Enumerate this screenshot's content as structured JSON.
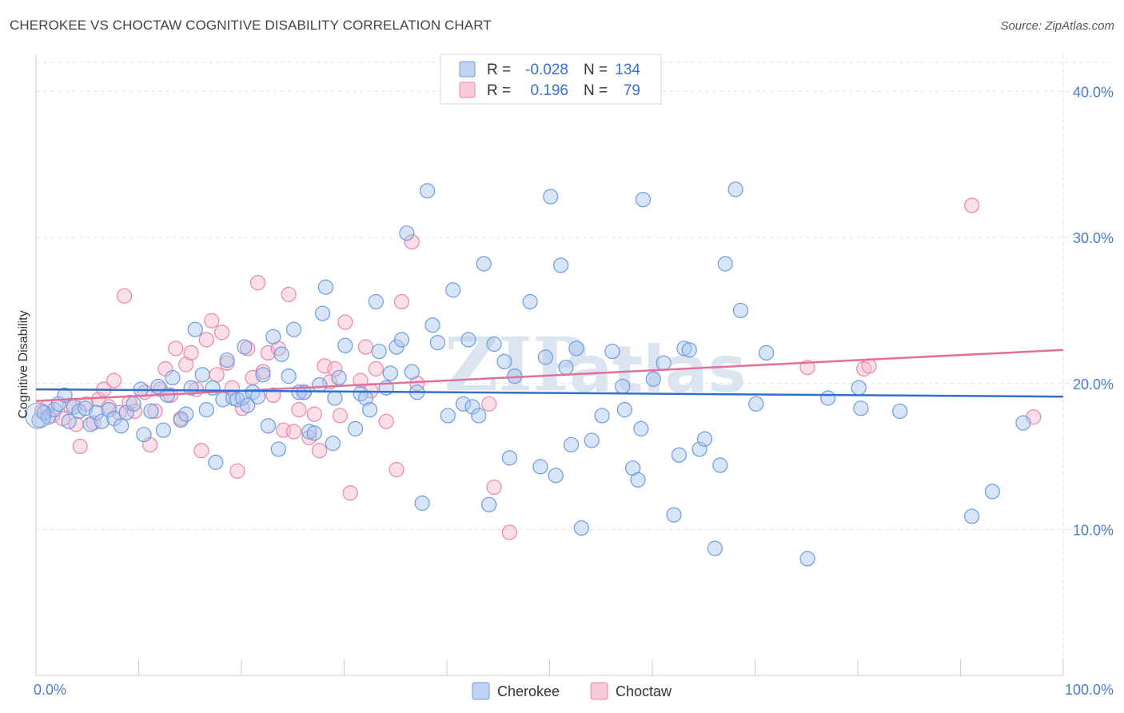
{
  "header": {
    "title": "CHEROKEE VS CHOCTAW COGNITIVE DISABILITY CORRELATION CHART",
    "source": "Source: ZipAtlas.com"
  },
  "watermark": {
    "zip": "ZIP",
    "atlas": "atlas"
  },
  "legend": {
    "rows": [
      {
        "r_label": "R =",
        "r_value": "-0.028",
        "n_label": "N =",
        "n_value": "134"
      },
      {
        "r_label": "R =",
        "r_value": "0.196",
        "n_label": "N =",
        "n_value": "79"
      }
    ]
  },
  "colors": {
    "cherokee_fill": "#a9c6ee",
    "cherokee_stroke": "#6d9be0",
    "cherokee_line": "#2f6fcf",
    "choctaw_fill": "#f6b8cb",
    "choctaw_stroke": "#e887a7",
    "choctaw_line": "#e0709a",
    "grid": "#e2e2e2",
    "tick_label": "#4a7cc7"
  },
  "chart_data": {
    "type": "scatter",
    "title": "CHEROKEE VS CHOCTAW COGNITIVE DISABILITY CORRELATION CHART",
    "xlabel": "",
    "ylabel": "Cognitive Disability",
    "xlim": [
      0,
      100
    ],
    "ylim": [
      0,
      42
    ],
    "x_tick_labels": [
      "0.0%",
      "100.0%"
    ],
    "y_ticks": [
      10,
      20,
      30,
      40
    ],
    "y_tick_labels": [
      "10.0%",
      "20.0%",
      "30.0%",
      "40.0%"
    ],
    "grid": true,
    "legend_position": "top-center",
    "series": [
      {
        "name": "Cherokee",
        "R": -0.028,
        "N": 134,
        "trend": {
          "x": [
            0,
            100
          ],
          "y": [
            19.6,
            19.1
          ]
        },
        "points": [
          [
            0.3,
            17.5
          ],
          [
            0.8,
            18.0
          ],
          [
            1.2,
            17.7
          ],
          [
            1.8,
            18.2
          ],
          [
            2.2,
            18.6
          ],
          [
            2.8,
            19.2
          ],
          [
            3.2,
            17.4
          ],
          [
            3.7,
            18.4
          ],
          [
            4.2,
            18.1
          ],
          [
            4.8,
            18.3
          ],
          [
            5.3,
            17.2
          ],
          [
            5.9,
            18.0
          ],
          [
            6.4,
            17.4
          ],
          [
            7.1,
            18.2
          ],
          [
            7.6,
            17.6
          ],
          [
            8.3,
            17.1
          ],
          [
            8.8,
            18.0
          ],
          [
            9.5,
            18.6
          ],
          [
            10.2,
            19.6
          ],
          [
            10.5,
            16.5
          ],
          [
            11.2,
            18.1
          ],
          [
            11.9,
            19.8
          ],
          [
            12.4,
            16.8
          ],
          [
            12.8,
            19.2
          ],
          [
            13.3,
            20.4
          ],
          [
            14.1,
            17.5
          ],
          [
            14.6,
            17.9
          ],
          [
            15.1,
            19.7
          ],
          [
            15.5,
            23.7
          ],
          [
            16.2,
            20.6
          ],
          [
            16.6,
            18.2
          ],
          [
            17.2,
            19.7
          ],
          [
            17.5,
            14.6
          ],
          [
            18.2,
            18.9
          ],
          [
            18.6,
            21.6
          ],
          [
            19.2,
            19.0
          ],
          [
            19.6,
            18.9
          ],
          [
            20.1,
            19.0
          ],
          [
            20.6,
            18.5
          ],
          [
            20.3,
            22.5
          ],
          [
            21.1,
            19.4
          ],
          [
            21.6,
            19.1
          ],
          [
            22.1,
            20.6
          ],
          [
            22.6,
            17.1
          ],
          [
            23.1,
            23.2
          ],
          [
            23.6,
            15.5
          ],
          [
            23.9,
            22.0
          ],
          [
            24.6,
            20.5
          ],
          [
            25.1,
            23.7
          ],
          [
            25.6,
            19.4
          ],
          [
            26.1,
            19.4
          ],
          [
            26.6,
            16.7
          ],
          [
            27.1,
            16.6
          ],
          [
            27.6,
            19.9
          ],
          [
            27.9,
            24.8
          ],
          [
            28.2,
            26.6
          ],
          [
            28.9,
            15.9
          ],
          [
            29.1,
            19.0
          ],
          [
            29.5,
            20.4
          ],
          [
            30.1,
            22.6
          ],
          [
            31.1,
            16.9
          ],
          [
            31.6,
            19.3
          ],
          [
            32.1,
            19.0
          ],
          [
            32.5,
            18.2
          ],
          [
            33.1,
            25.6
          ],
          [
            33.4,
            22.2
          ],
          [
            34.1,
            19.7
          ],
          [
            34.5,
            20.7
          ],
          [
            35.1,
            22.5
          ],
          [
            35.6,
            23.0
          ],
          [
            36.1,
            30.3
          ],
          [
            36.6,
            20.8
          ],
          [
            37.1,
            19.4
          ],
          [
            37.6,
            11.8
          ],
          [
            38.1,
            33.2
          ],
          [
            38.6,
            24.0
          ],
          [
            39.1,
            22.8
          ],
          [
            40.1,
            17.8
          ],
          [
            40.6,
            26.4
          ],
          [
            41.6,
            18.6
          ],
          [
            42.1,
            23.0
          ],
          [
            42.5,
            18.4
          ],
          [
            43.1,
            17.8
          ],
          [
            43.6,
            28.2
          ],
          [
            44.1,
            11.7
          ],
          [
            44.6,
            22.7
          ],
          [
            45.6,
            21.5
          ],
          [
            46.1,
            14.9
          ],
          [
            46.6,
            20.5
          ],
          [
            48.1,
            25.6
          ],
          [
            49.1,
            14.3
          ],
          [
            49.6,
            21.8
          ],
          [
            50.1,
            32.8
          ],
          [
            50.6,
            13.7
          ],
          [
            51.1,
            28.1
          ],
          [
            51.6,
            21.1
          ],
          [
            52.1,
            15.8
          ],
          [
            52.6,
            22.4
          ],
          [
            53.1,
            10.1
          ],
          [
            54.1,
            16.1
          ],
          [
            55.1,
            17.8
          ],
          [
            56.1,
            22.2
          ],
          [
            57.1,
            19.8
          ],
          [
            57.3,
            18.2
          ],
          [
            58.1,
            14.2
          ],
          [
            58.6,
            13.4
          ],
          [
            58.9,
            16.9
          ],
          [
            59.1,
            32.6
          ],
          [
            60.1,
            20.3
          ],
          [
            61.1,
            21.4
          ],
          [
            62.1,
            11.0
          ],
          [
            62.6,
            15.1
          ],
          [
            63.1,
            22.4
          ],
          [
            63.6,
            22.3
          ],
          [
            64.6,
            15.5
          ],
          [
            65.1,
            16.2
          ],
          [
            66.1,
            8.7
          ],
          [
            66.6,
            14.4
          ],
          [
            67.1,
            28.2
          ],
          [
            68.1,
            33.3
          ],
          [
            68.6,
            25.0
          ],
          [
            70.1,
            18.6
          ],
          [
            71.1,
            22.1
          ],
          [
            75.1,
            8.0
          ],
          [
            77.1,
            19.0
          ],
          [
            80.1,
            19.7
          ],
          [
            80.3,
            18.3
          ],
          [
            84.1,
            18.1
          ],
          [
            91.1,
            10.9
          ],
          [
            93.1,
            12.6
          ],
          [
            96.1,
            17.3
          ]
        ]
      },
      {
        "name": "Choctaw",
        "R": 0.196,
        "N": 79,
        "trend": {
          "x": [
            0,
            100
          ],
          "y": [
            18.8,
            22.3
          ]
        },
        "points": [
          [
            0.6,
            18.1
          ],
          [
            1.1,
            18.4
          ],
          [
            1.6,
            17.8
          ],
          [
            2.6,
            17.6
          ],
          [
            3.3,
            18.5
          ],
          [
            3.9,
            17.2
          ],
          [
            4.3,
            15.7
          ],
          [
            4.9,
            18.6
          ],
          [
            5.6,
            17.3
          ],
          [
            6.1,
            18.9
          ],
          [
            6.6,
            19.6
          ],
          [
            7.1,
            18.4
          ],
          [
            7.6,
            20.2
          ],
          [
            8.1,
            18.0
          ],
          [
            8.6,
            26.0
          ],
          [
            9.1,
            18.7
          ],
          [
            9.6,
            18.1
          ],
          [
            10.6,
            19.4
          ],
          [
            11.1,
            15.8
          ],
          [
            11.6,
            18.1
          ],
          [
            12.1,
            19.6
          ],
          [
            12.6,
            21.0
          ],
          [
            13.1,
            19.2
          ],
          [
            13.6,
            22.4
          ],
          [
            14.1,
            17.6
          ],
          [
            14.6,
            21.3
          ],
          [
            15.1,
            22.1
          ],
          [
            15.6,
            19.6
          ],
          [
            16.1,
            15.4
          ],
          [
            16.6,
            23.0
          ],
          [
            17.1,
            24.3
          ],
          [
            17.6,
            20.6
          ],
          [
            18.1,
            23.5
          ],
          [
            18.6,
            21.4
          ],
          [
            19.1,
            19.7
          ],
          [
            19.6,
            14.0
          ],
          [
            20.1,
            18.3
          ],
          [
            20.6,
            22.4
          ],
          [
            21.1,
            20.4
          ],
          [
            21.6,
            26.9
          ],
          [
            22.1,
            20.8
          ],
          [
            22.6,
            22.1
          ],
          [
            23.1,
            19.2
          ],
          [
            23.6,
            22.4
          ],
          [
            24.1,
            16.8
          ],
          [
            24.6,
            26.1
          ],
          [
            25.1,
            16.7
          ],
          [
            25.6,
            18.2
          ],
          [
            26.1,
            19.4
          ],
          [
            26.6,
            16.3
          ],
          [
            27.1,
            17.9
          ],
          [
            27.6,
            15.4
          ],
          [
            28.1,
            21.2
          ],
          [
            28.6,
            20.1
          ],
          [
            29.1,
            21.0
          ],
          [
            29.6,
            17.8
          ],
          [
            30.1,
            24.2
          ],
          [
            30.6,
            12.5
          ],
          [
            31.6,
            20.2
          ],
          [
            32.1,
            22.5
          ],
          [
            32.6,
            19.5
          ],
          [
            33.1,
            21.0
          ],
          [
            34.1,
            17.4
          ],
          [
            35.1,
            14.1
          ],
          [
            35.6,
            25.6
          ],
          [
            36.6,
            29.7
          ],
          [
            37.1,
            20.0
          ],
          [
            44.1,
            18.6
          ],
          [
            44.6,
            12.9
          ],
          [
            46.1,
            9.8
          ],
          [
            75.1,
            21.1
          ],
          [
            80.6,
            21.0
          ],
          [
            81.1,
            21.2
          ],
          [
            91.1,
            32.2
          ],
          [
            97.1,
            17.7
          ]
        ]
      }
    ]
  },
  "bottom_legend": {
    "items": [
      {
        "label": "Cherokee"
      },
      {
        "label": "Choctaw"
      }
    ]
  }
}
